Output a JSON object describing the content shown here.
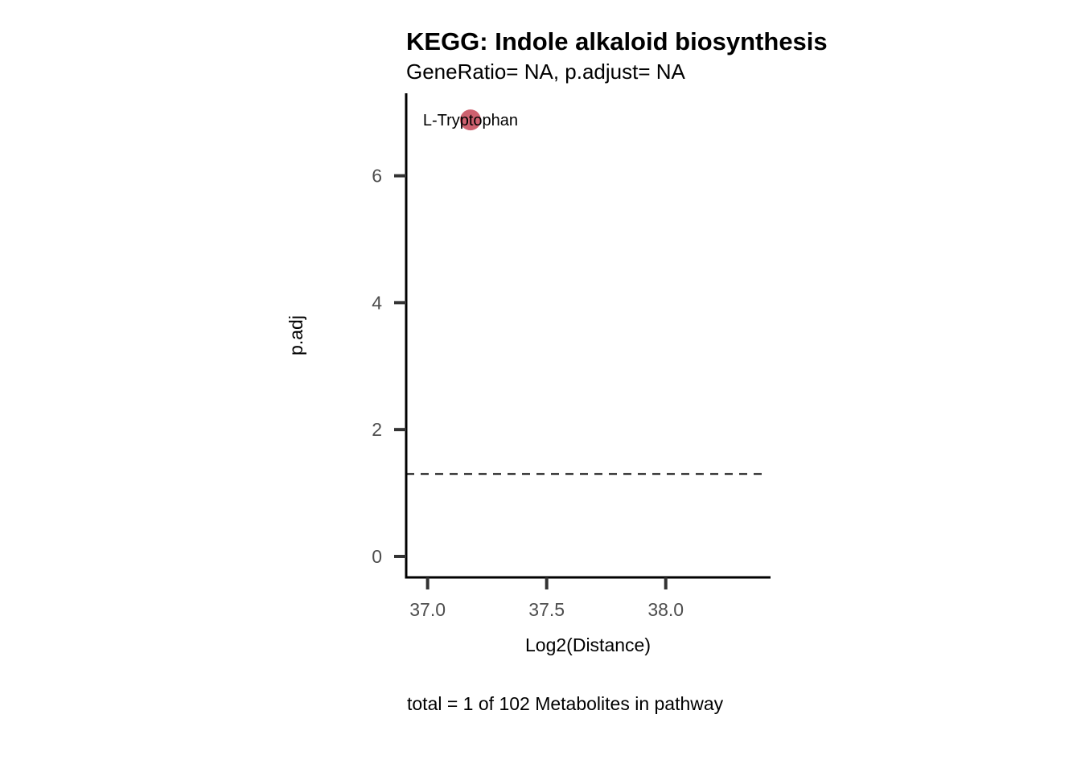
{
  "chart_data": {
    "type": "scatter",
    "title": "KEGG: Indole alkaloid biosynthesis",
    "subtitle": "GeneRatio= NA, p.adjust= NA",
    "xlabel": "Log2(Distance)",
    "ylabel": "p.adj",
    "caption": "total = 1 of 102 Metabolites in pathway",
    "xlim": [
      36.91,
      38.44
    ],
    "ylim": [
      -0.33,
      7.3
    ],
    "x_ticks": [
      37.0,
      37.5,
      38.0
    ],
    "x_tick_labels": [
      "37.0",
      "37.5",
      "38.0"
    ],
    "y_ticks": [
      0,
      2,
      4,
      6
    ],
    "y_tick_labels": [
      "0",
      "2",
      "4",
      "6"
    ],
    "grid": false,
    "points": [
      {
        "label": "L-Tryptophan",
        "x": 37.18,
        "y": 6.88,
        "color": "#c9505f"
      }
    ],
    "hline": {
      "y": 1.3,
      "style": "dashed",
      "color": "#000000"
    }
  }
}
